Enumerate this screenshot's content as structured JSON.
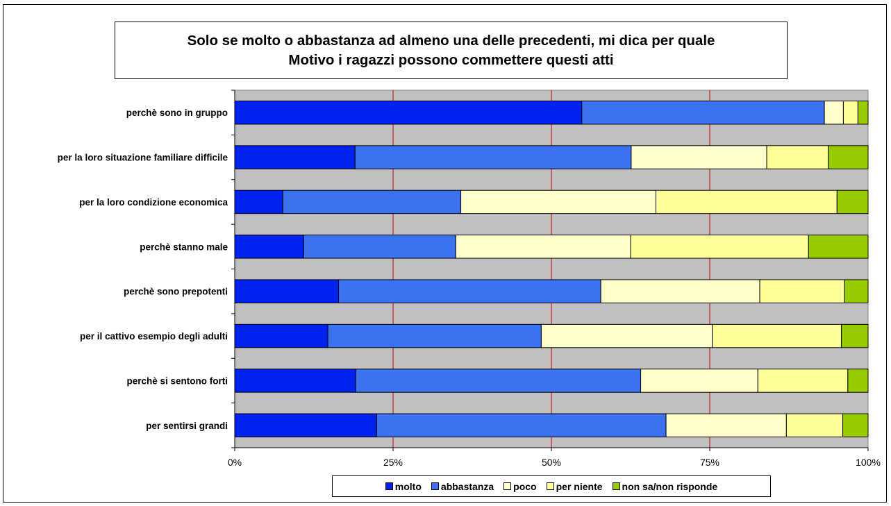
{
  "chart_data": {
    "type": "bar",
    "orientation": "horizontal",
    "stacked": true,
    "percent": true,
    "title_lines": [
      "Solo se molto o abbastanza ad almeno una delle precedenti, mi dica per quale",
      "Motivo i ragazzi possono commettere questi atti"
    ],
    "categories": [
      "perchè sono in gruppo",
      "per la loro situazione familiare difficile",
      "per la loro condizione economica",
      "perchè stanno male",
      "perchè sono prepotenti",
      "per il cattivo esempio degli adulti",
      "perchè si sentono forti",
      "per sentirsi grandi"
    ],
    "series": [
      {
        "name": "molto",
        "color": "#0022ee",
        "values": [
          54.8,
          19.0,
          7.6,
          10.9,
          16.4,
          14.7,
          19.1,
          22.4
        ]
      },
      {
        "name": "abbastanza",
        "color": "#3a72f0",
        "values": [
          38.3,
          43.6,
          28.1,
          24.0,
          41.4,
          33.7,
          45.0,
          45.7
        ]
      },
      {
        "name": "poco",
        "color": "#ffffcc",
        "values": [
          3.0,
          21.4,
          30.8,
          27.6,
          25.1,
          27.0,
          18.5,
          19.0
        ]
      },
      {
        "name": "per niente",
        "color": "#ffff99",
        "values": [
          2.3,
          9.7,
          28.6,
          28.1,
          13.4,
          20.4,
          14.2,
          8.9
        ]
      },
      {
        "name": "non sa/non risponde",
        "color": "#99cc00",
        "values": [
          1.6,
          6.3,
          4.9,
          9.4,
          3.7,
          4.2,
          3.2,
          4.0
        ]
      }
    ],
    "x_ticks": [
      "0%",
      "25%",
      "50%",
      "75%",
      "100%"
    ],
    "xlim": [
      0,
      100
    ],
    "plot_background": "#c0c0c0",
    "gridline_color": "#cc0000",
    "legend_position": "bottom"
  }
}
